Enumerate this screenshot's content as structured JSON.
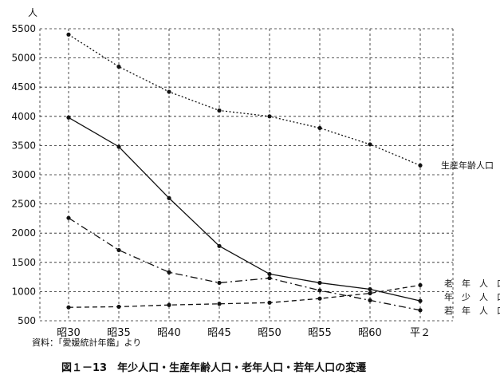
{
  "chart_data": {
    "type": "line",
    "title": "",
    "xlabel": "",
    "ylabel": "",
    "y_unit": "人",
    "categories": [
      "昭30",
      "昭35",
      "昭40",
      "昭45",
      "昭50",
      "昭55",
      "昭60",
      "平２"
    ],
    "ylim": [
      500,
      5500
    ],
    "yticks": [
      500,
      1000,
      1500,
      2000,
      2500,
      3000,
      3500,
      4000,
      4500,
      5000,
      5500
    ],
    "grid": true,
    "series": [
      {
        "name": "生産年齢人口",
        "style": "dotted",
        "values": [
          5400,
          4850,
          4420,
          4100,
          4000,
          3800,
          3520,
          3160
        ]
      },
      {
        "name": "年少人口",
        "style": "solid",
        "values": [
          3980,
          3480,
          2600,
          1780,
          1300,
          1150,
          1040,
          840
        ]
      },
      {
        "name": "若年人口",
        "style": "dashdot",
        "values": [
          2260,
          1710,
          1330,
          1150,
          1230,
          1020,
          850,
          680
        ]
      },
      {
        "name": "老年人口",
        "style": "dashed",
        "values": [
          730,
          740,
          770,
          790,
          810,
          880,
          970,
          1110
        ]
      }
    ],
    "end_labels": [
      "生産年齢人口",
      "老　年　人　口",
      "年　少　人　口",
      "若　年　人　口"
    ],
    "source": "資料：「愛媛統計年鑑」より",
    "caption": "図１－13　年少人口・生産年齢人口・老年人口・若年人口の変遷"
  }
}
